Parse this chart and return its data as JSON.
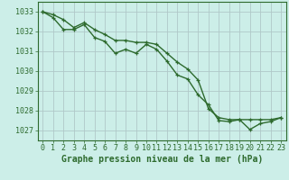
{
  "line1": {
    "x": [
      0,
      1,
      2,
      3,
      4,
      5,
      6,
      7,
      8,
      9,
      10,
      11,
      12,
      13,
      14,
      15,
      16,
      17,
      18,
      19,
      20,
      21,
      22,
      23
    ],
    "y": [
      1033.0,
      1032.85,
      1032.6,
      1032.2,
      1032.45,
      1032.1,
      1031.85,
      1031.55,
      1031.55,
      1031.45,
      1031.45,
      1031.35,
      1030.9,
      1030.45,
      1030.1,
      1029.55,
      1028.1,
      1027.65,
      1027.55,
      1027.55,
      1027.55,
      1027.55,
      1027.55,
      1027.65
    ]
  },
  "line2": {
    "x": [
      0,
      1,
      2,
      3,
      4,
      5,
      6,
      7,
      8,
      9,
      10,
      11,
      12,
      13,
      14,
      15,
      16,
      17,
      18,
      19,
      20,
      21,
      22,
      23
    ],
    "y": [
      1033.0,
      1032.7,
      1032.1,
      1032.1,
      1032.35,
      1031.7,
      1031.5,
      1030.9,
      1031.1,
      1030.9,
      1031.35,
      1031.1,
      1030.5,
      1029.8,
      1029.6,
      1028.8,
      1028.3,
      1027.5,
      1027.45,
      1027.55,
      1027.05,
      1027.35,
      1027.45,
      1027.65
    ]
  },
  "line_color": "#2d6a2d",
  "marker": "+",
  "bg_color": "#cceee8",
  "grid_color": "#b0c8c8",
  "ylim": [
    1026.5,
    1033.5
  ],
  "xlim": [
    -0.5,
    23.5
  ],
  "yticks": [
    1027,
    1028,
    1029,
    1030,
    1031,
    1032,
    1033
  ],
  "xticks": [
    0,
    1,
    2,
    3,
    4,
    5,
    6,
    7,
    8,
    9,
    10,
    11,
    12,
    13,
    14,
    15,
    16,
    17,
    18,
    19,
    20,
    21,
    22,
    23
  ],
  "xlabel": "Graphe pression niveau de la mer (hPa)",
  "xlabel_fontsize": 7,
  "ylabel_fontsize": 6,
  "tick_fontsize": 6,
  "line_width": 1.0,
  "marker_size": 3.5,
  "marker_ew": 0.9
}
